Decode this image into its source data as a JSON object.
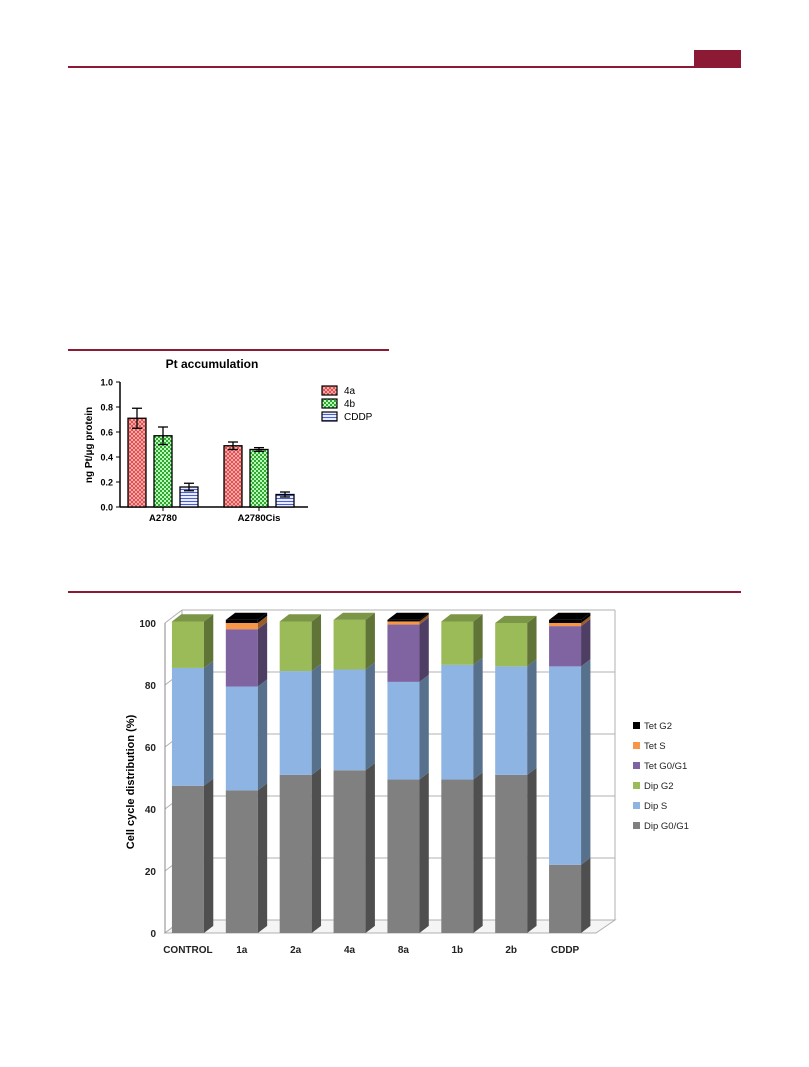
{
  "colors": {
    "rule": "#8c1a34"
  },
  "chart_data": [
    {
      "type": "bar",
      "title": "Pt accumulation",
      "ylabel": "ng Pt/µg protein",
      "xlabel": "",
      "ylim": [
        0,
        1.0
      ],
      "yticks": [
        "0.0",
        "0.2",
        "0.4",
        "0.6",
        "0.8",
        "1.0"
      ],
      "categories": [
        "A2780",
        "A2780Cis"
      ],
      "series": [
        {
          "name": "4a",
          "values": [
            0.71,
            0.49
          ],
          "errors": [
            0.08,
            0.03
          ],
          "color": "#f4a6a6",
          "pattern": "crosshatch-red"
        },
        {
          "name": "4b",
          "values": [
            0.57,
            0.46
          ],
          "errors": [
            0.07,
            0.015
          ],
          "color": "#a9f4a9",
          "pattern": "checker-green"
        },
        {
          "name": "CDDP",
          "values": [
            0.16,
            0.1
          ],
          "errors": [
            0.03,
            0.02
          ],
          "color": "#cdd6ff",
          "pattern": "stripes-blue"
        }
      ],
      "legend": "right",
      "grid": false
    },
    {
      "type": "bar",
      "stacked": true,
      "title": "",
      "ylabel": "Cell cycle distribution (%)",
      "xlabel": "",
      "ylim": [
        0,
        100
      ],
      "yticks": [
        "0",
        "20",
        "40",
        "60",
        "80",
        "100"
      ],
      "categories": [
        "CONTROL",
        "1a",
        "2a",
        "4a",
        "8a",
        "1b",
        "2b",
        "CDDP"
      ],
      "series": [
        {
          "name": "Dip G0/G1",
          "color": "#808080",
          "values": [
            47.5,
            46,
            51,
            52.5,
            49.5,
            49.5,
            51,
            22
          ]
        },
        {
          "name": "Dip S",
          "color": "#8db4e2",
          "values": [
            38,
            33.5,
            33.5,
            32.5,
            31.5,
            37,
            35,
            64
          ]
        },
        {
          "name": "Dip G2",
          "color": "#9bbb59",
          "values": [
            15,
            0,
            16,
            16,
            0,
            14,
            14,
            0
          ]
        },
        {
          "name": "Tet G0/G1",
          "color": "#8064a2",
          "values": [
            0,
            18.5,
            0,
            0,
            18.5,
            0,
            0,
            13
          ]
        },
        {
          "name": "Tet S",
          "color": "#f79646",
          "values": [
            0,
            2,
            0,
            0,
            1,
            0,
            0,
            1
          ]
        },
        {
          "name": "Tet G2",
          "color": "#000000",
          "values": [
            0,
            1,
            0,
            0,
            0.5,
            0,
            0,
            1
          ]
        }
      ],
      "legend": "right",
      "grid": true
    }
  ]
}
